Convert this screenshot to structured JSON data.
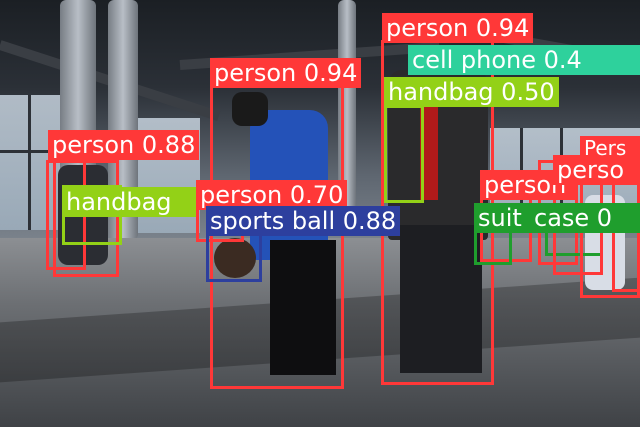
{
  "colors": {
    "person": "#ff3838",
    "handbag": "#93d117",
    "cell_phone": "#2ed19c",
    "sports_ball": "#2d3f9e",
    "suitcase": "#1f9e2d",
    "text": "#ffffff"
  },
  "detections": [
    {
      "id": "d1",
      "label": "person 0.94",
      "class": "person"
    },
    {
      "id": "d2",
      "label": "cell phone 0.4",
      "class": "cell_phone"
    },
    {
      "id": "d3",
      "label": "handbag 0.50",
      "class": "handbag"
    },
    {
      "id": "d4",
      "label": "person 0.94",
      "class": "person"
    },
    {
      "id": "d5",
      "label": "person 0.88",
      "class": "person"
    },
    {
      "id": "d6",
      "label": "handbag",
      "class": "handbag"
    },
    {
      "id": "d7",
      "label": "person 0.70",
      "class": "person"
    },
    {
      "id": "d8",
      "label": "sports ball 0.88",
      "class": "sports_ball"
    },
    {
      "id": "d9",
      "label": "person",
      "class": "person"
    },
    {
      "id": "d10",
      "label": "suit",
      "class": "suitcase"
    },
    {
      "id": "d11",
      "label": "case 0",
      "class": "suitcase"
    },
    {
      "id": "d12",
      "label": "perso",
      "class": "person"
    },
    {
      "id": "d13",
      "label": "Pers",
      "class": "person"
    }
  ]
}
